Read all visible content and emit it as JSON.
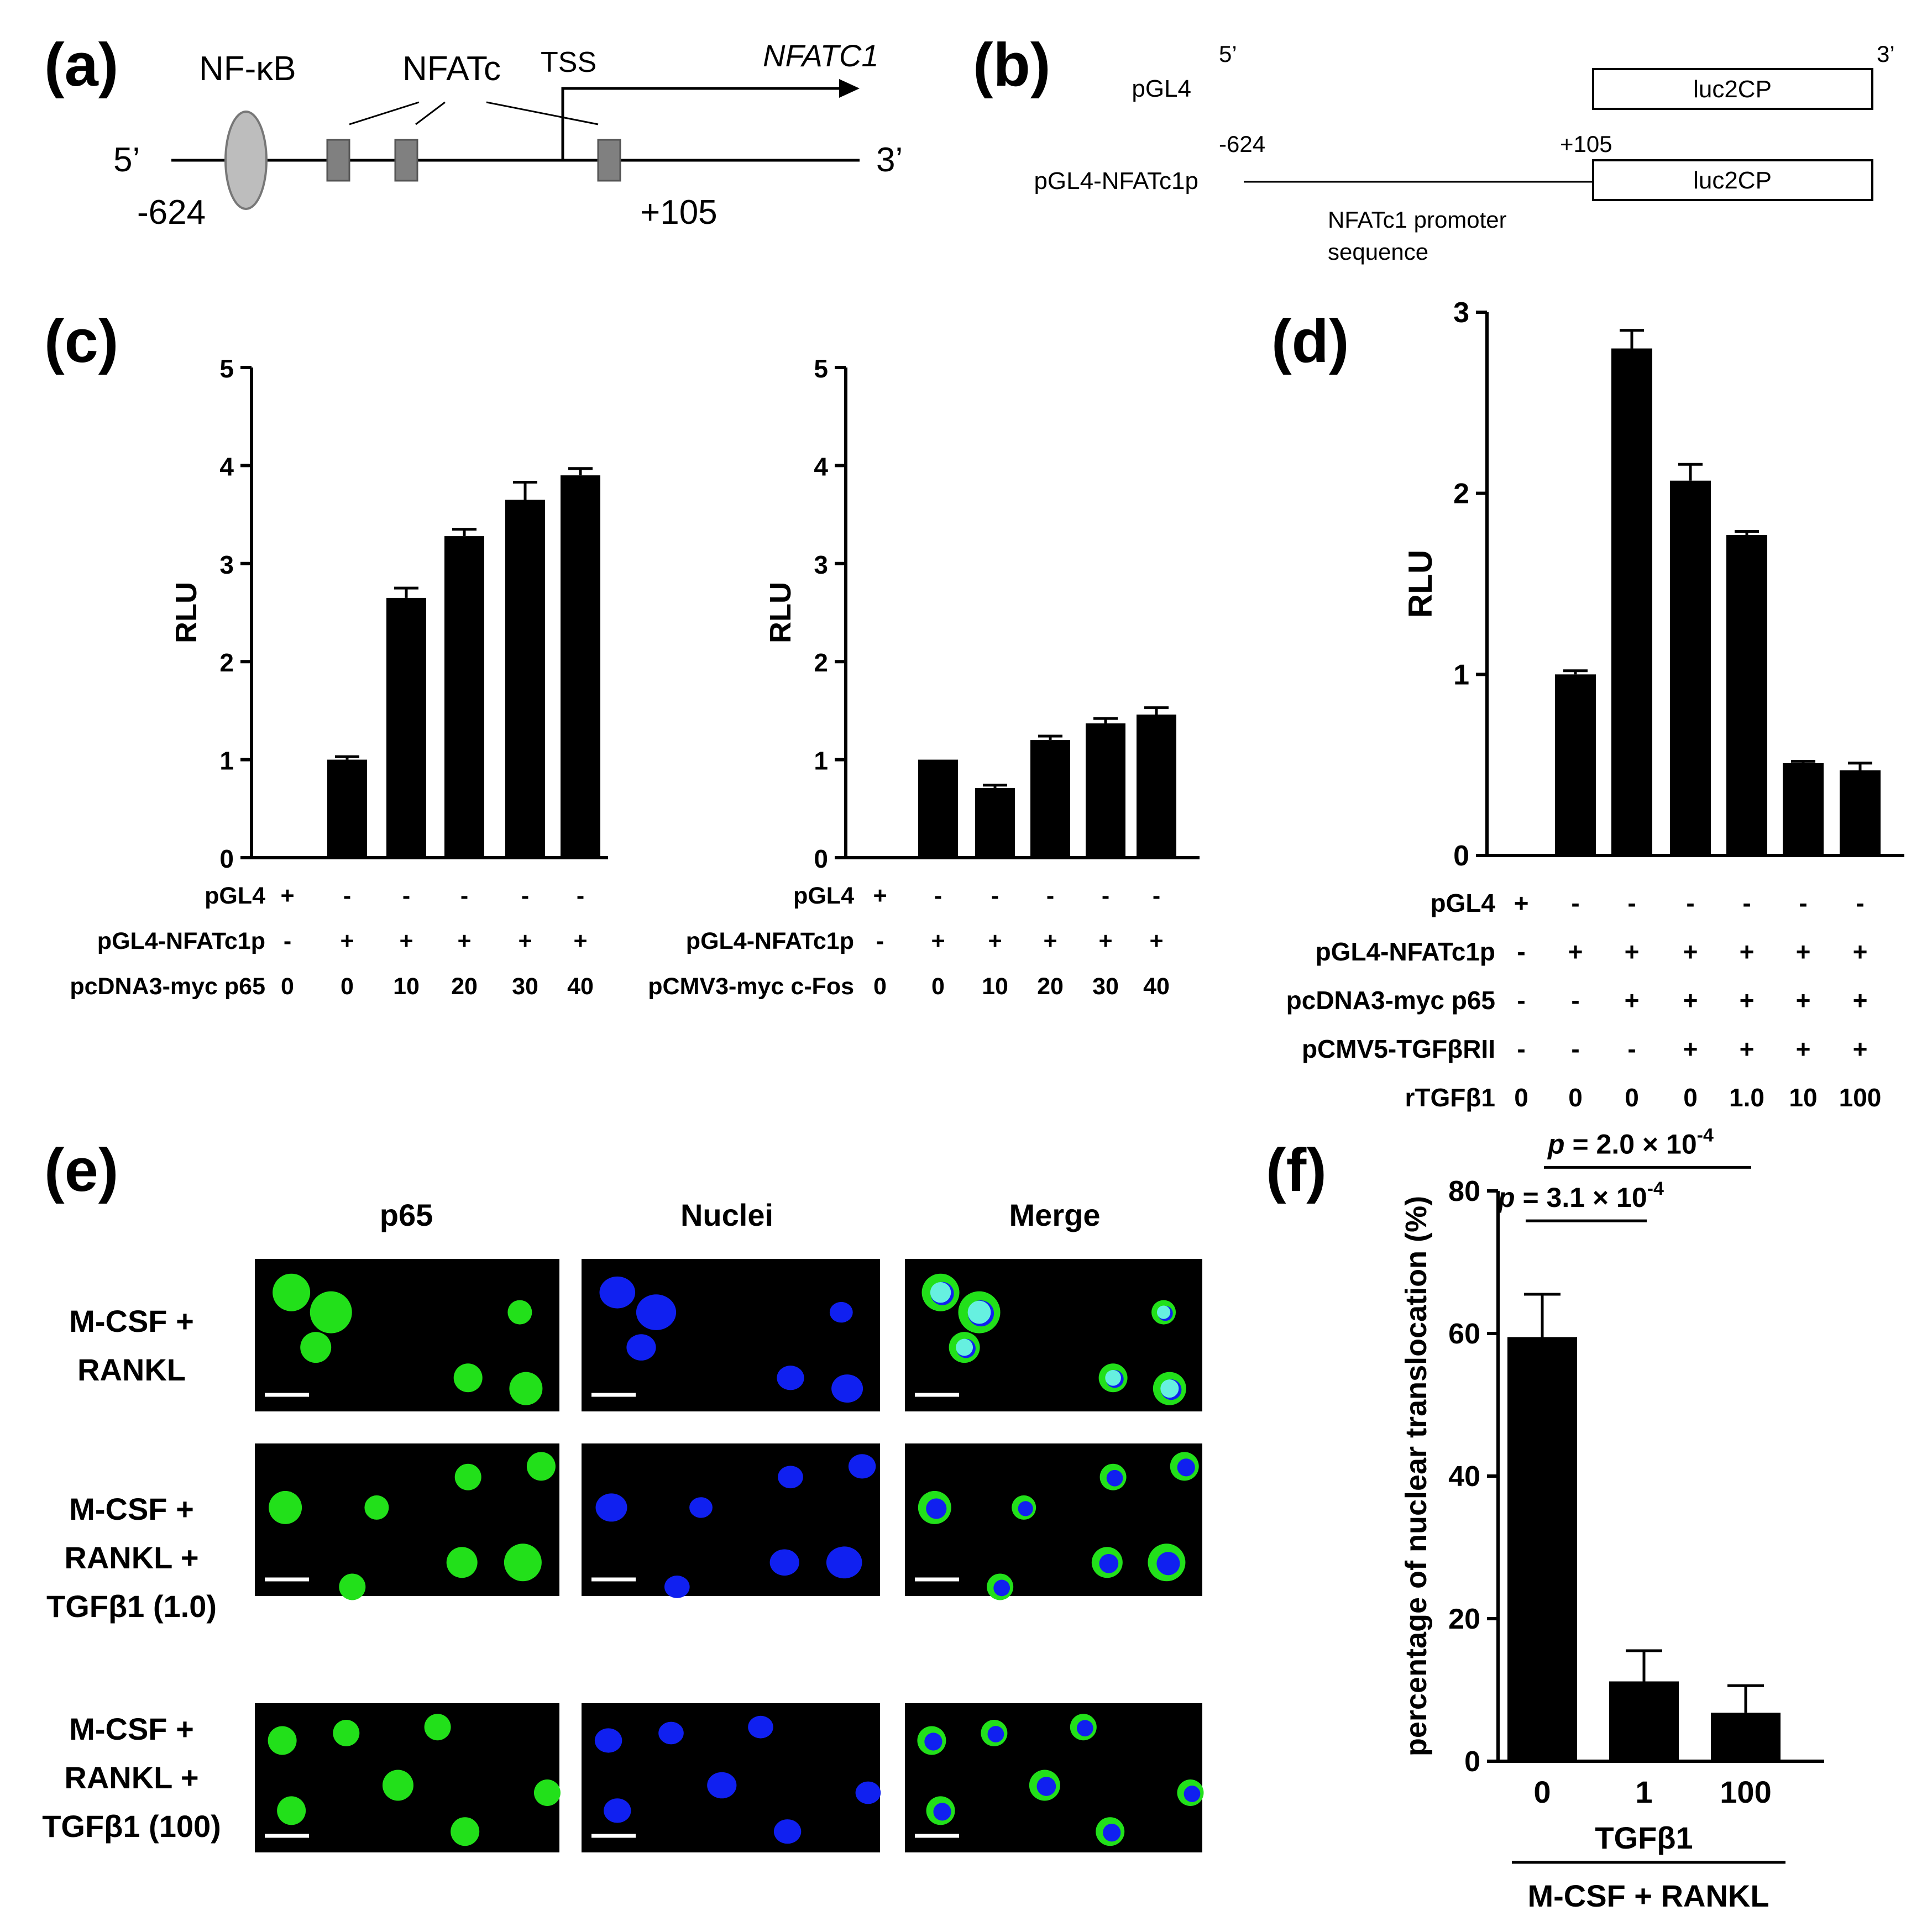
{
  "colors": {
    "green": "#22e01a",
    "blue": "#1020f0",
    "cyan": "#66f0e0",
    "bar": "#000000",
    "ellipse": "#bdbdbd",
    "box": "#808080"
  },
  "panel_labels": [
    "(a)",
    "(b)",
    "(c)",
    "(d)",
    "(e)",
    "(f)"
  ],
  "panel_a": {
    "nfkb": "NF-κB",
    "nfatc": "NFATc",
    "tss": "TSS",
    "gene": "NFATC1",
    "five": "5’",
    "three": "3’",
    "start": "-624",
    "end": "+105"
  },
  "panel_b": {
    "five": "5’",
    "three": "3’",
    "row1": "pGL4",
    "row2": "pGL4-NFATc1p",
    "luc": "luc2CP",
    "start": "-624",
    "end": "+105",
    "promoter_line1": "NFATc1 promoter",
    "promoter_line2": "sequence"
  },
  "panel_e": {
    "col_headers": [
      "p65",
      "Nuclei",
      "Merge"
    ],
    "row_labels": [
      [
        "M-CSF +",
        "RANKL"
      ],
      [
        "M-CSF +",
        "RANKL +",
        "TGFβ1 (1.0)"
      ],
      [
        "M-CSF +",
        "RANKL +",
        "TGFβ1 (100)"
      ]
    ]
  },
  "chart_data": [
    {
      "panel": "c-left",
      "type": "bar",
      "ylabel": "RLU",
      "ylim": [
        0,
        5
      ],
      "yticks": [
        0,
        1,
        2,
        3,
        4,
        5
      ],
      "values": [
        0,
        1.0,
        2.65,
        3.28,
        3.65,
        3.9
      ],
      "errors": [
        0,
        0.03,
        0.1,
        0.07,
        0.18,
        0.07
      ],
      "condition_rows": [
        {
          "label": "pGL4",
          "values": [
            "+",
            "-",
            "-",
            "-",
            "-",
            "-"
          ]
        },
        {
          "label": "pGL4-NFATc1p",
          "values": [
            "-",
            "+",
            "+",
            "+",
            "+",
            "+"
          ]
        },
        {
          "label": "pcDNA3-myc p65",
          "values": [
            "0",
            "0",
            "10",
            "20",
            "30",
            "40"
          ]
        }
      ]
    },
    {
      "panel": "c-right",
      "type": "bar",
      "ylabel": "RLU",
      "ylim": [
        0,
        5
      ],
      "yticks": [
        0,
        1,
        2,
        3,
        4,
        5
      ],
      "values": [
        0,
        1.0,
        0.71,
        1.2,
        1.37,
        1.46
      ],
      "errors": [
        0,
        0.0,
        0.03,
        0.04,
        0.05,
        0.07
      ],
      "condition_rows": [
        {
          "label": "pGL4",
          "values": [
            "+",
            "-",
            "-",
            "-",
            "-",
            "-"
          ]
        },
        {
          "label": "pGL4-NFATc1p",
          "values": [
            "-",
            "+",
            "+",
            "+",
            "+",
            "+"
          ]
        },
        {
          "label": "pCMV3-myc c-Fos",
          "values": [
            "0",
            "0",
            "10",
            "20",
            "30",
            "40"
          ]
        }
      ]
    },
    {
      "panel": "d",
      "type": "bar",
      "ylabel": "RLU",
      "ylim": [
        0,
        3
      ],
      "yticks": [
        0,
        1,
        2,
        3
      ],
      "values": [
        0,
        1.0,
        2.8,
        2.07,
        1.77,
        0.51,
        0.47
      ],
      "errors": [
        0,
        0.02,
        0.1,
        0.09,
        0.02,
        0.01,
        0.04
      ],
      "condition_rows": [
        {
          "label": "pGL4",
          "values": [
            "+",
            "-",
            "-",
            "-",
            "-",
            "-",
            "-"
          ]
        },
        {
          "label": "pGL4-NFATc1p",
          "values": [
            "-",
            "+",
            "+",
            "+",
            "+",
            "+",
            "+"
          ]
        },
        {
          "label": "pcDNA3-myc p65",
          "values": [
            "-",
            "-",
            "+",
            "+",
            "+",
            "+",
            "+"
          ]
        },
        {
          "label": "pCMV5-TGFβRII",
          "values": [
            "-",
            "-",
            "-",
            "+",
            "+",
            "+",
            "+"
          ]
        },
        {
          "label": "rTGFβ1",
          "values": [
            "0",
            "0",
            "0",
            "0",
            "1.0",
            "10",
            "100"
          ]
        }
      ]
    },
    {
      "panel": "f",
      "type": "bar",
      "ylabel": "percentage of nuclear translocation (%)",
      "ylim": [
        0,
        80
      ],
      "yticks": [
        0,
        20,
        40,
        60,
        80
      ],
      "categories": [
        "0",
        "1",
        "100"
      ],
      "values": [
        59.5,
        11.2,
        6.8
      ],
      "errors": [
        6.0,
        4.3,
        3.8
      ],
      "xlabel": "TGFβ1",
      "group_label": "M-CSF + RANKL",
      "comparisons": [
        {
          "p_prefix": "p",
          "p_text": " = 3.1 × 10",
          "exp": "-4",
          "between": [
            "0",
            "1"
          ]
        },
        {
          "p_prefix": "p",
          "p_text": " = 2.0 × 10",
          "exp": "-4",
          "between": [
            "0",
            "100"
          ]
        }
      ]
    }
  ]
}
